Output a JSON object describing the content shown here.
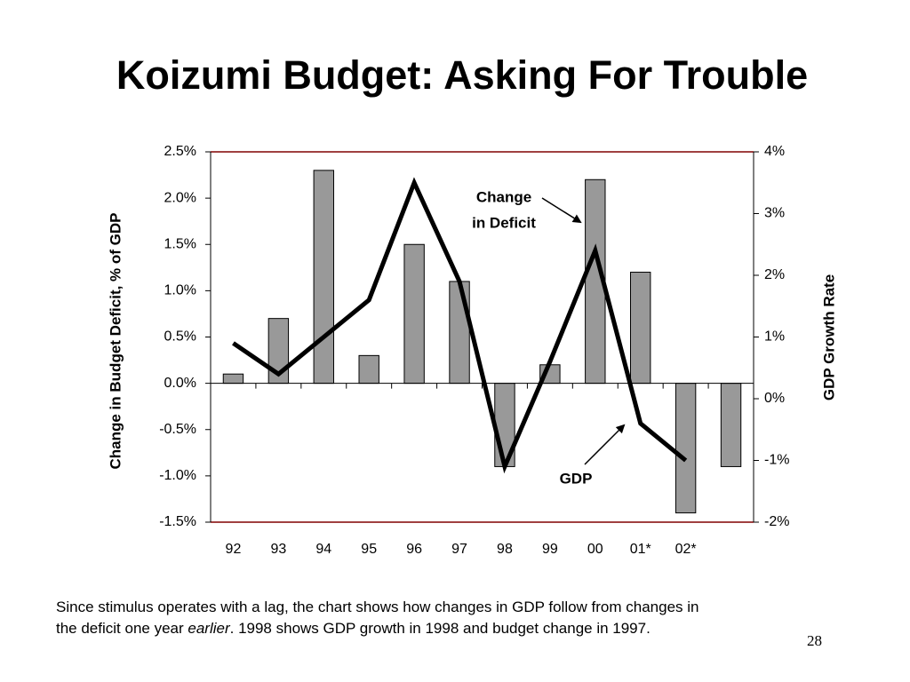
{
  "chart_data": {
    "type": "bar",
    "title": "Koizumi Budget: Asking For Trouble",
    "ylabel": "Change in Budget Deficit, % of GDP",
    "y2label": "GDP Growth Rate",
    "categories": [
      "92",
      "93",
      "94",
      "95",
      "96",
      "97",
      "98",
      "99",
      "00",
      "01*",
      "02*",
      null
    ],
    "series": [
      {
        "type": "bar",
        "name": "Change in Deficit",
        "color": "#999999",
        "values": [
          0.1,
          0.7,
          2.3,
          0.3,
          1.5,
          1.1,
          -0.9,
          0.2,
          2.2,
          1.2,
          -1.4,
          -0.9
        ]
      },
      {
        "type": "line",
        "name": "GDP",
        "color": "#000000",
        "axis": "y2",
        "values": [
          0.9,
          0.4,
          1.0,
          1.6,
          3.5,
          1.9,
          -1.1,
          0.6,
          2.4,
          -0.4,
          -1.0,
          null
        ]
      }
    ],
    "ylim": [
      -1.5,
      2.5
    ],
    "yticks": [
      {
        "value": 2.5,
        "label": "2.5%"
      },
      {
        "value": 2.0,
        "label": "2.0%"
      },
      {
        "value": 1.5,
        "label": "1.5%"
      },
      {
        "value": 1.0,
        "label": "1.0%"
      },
      {
        "value": 0.5,
        "label": "0.5%"
      },
      {
        "value": 0.0,
        "label": "0.0%"
      },
      {
        "value": -0.5,
        "label": "-0.5%"
      },
      {
        "value": -1.0,
        "label": "-1.0%"
      },
      {
        "value": -1.5,
        "label": "-1.5%"
      }
    ],
    "y2lim": [
      -2,
      4
    ],
    "y2ticks": [
      {
        "value": 4,
        "label": "4%"
      },
      {
        "value": 3,
        "label": "3%"
      },
      {
        "value": 2,
        "label": "2%"
      },
      {
        "value": 1,
        "label": "1%"
      },
      {
        "value": 0,
        "label": "0%"
      },
      {
        "value": -1,
        "label": "-1%"
      },
      {
        "value": -2,
        "label": "-2%"
      }
    ],
    "annotations": [
      "Change",
      "in Deficit",
      "GDP"
    ],
    "grid": false
  },
  "note": [
    "Since stimulus operates with a lag, the chart shows how changes in GDP follow from changes in",
    "the deficit one year ",
    "earlier",
    ". 1998 shows GDP growth in 1998 and budget change in 1997."
  ],
  "page_number": "28"
}
